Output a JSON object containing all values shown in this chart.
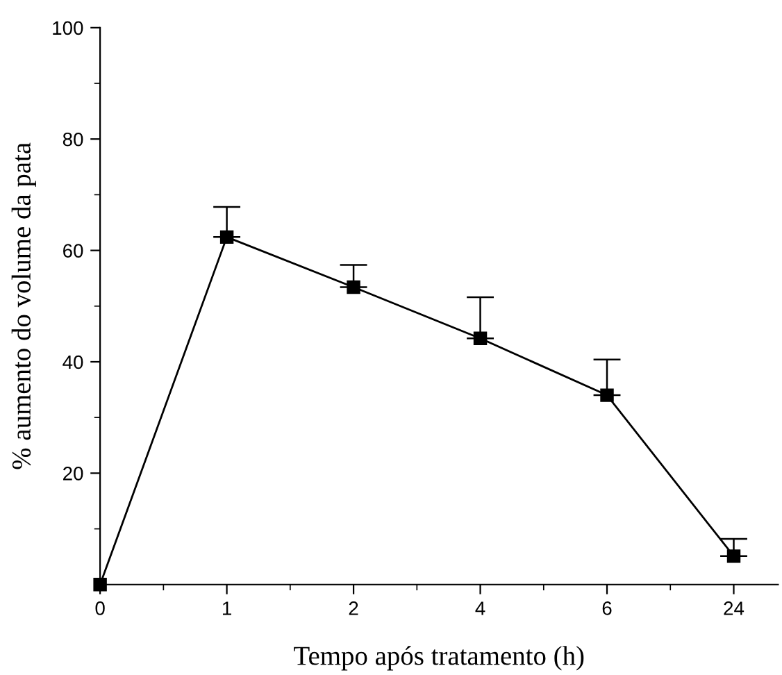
{
  "chart_data": {
    "type": "line",
    "xlabel": "Tempo após tratamento (h)",
    "ylabel": "% aumento do volume da pata",
    "categories": [
      "0",
      "1",
      "2",
      "4",
      "6",
      "24"
    ],
    "values": [
      0,
      62.4,
      53.4,
      44.2,
      34.0,
      5.1
    ],
    "errors": [
      null,
      [
        62.4,
        67.8
      ],
      [
        53.4,
        57.4
      ],
      [
        44.2,
        51.6
      ],
      [
        34.0,
        40.4
      ],
      [
        5.1,
        8.2
      ]
    ],
    "color": "#000000",
    "marker": "square",
    "line_style": "solid",
    "ylim": [
      0,
      100
    ],
    "yticks": [
      20,
      40,
      60,
      80,
      100
    ],
    "grid": false
  }
}
